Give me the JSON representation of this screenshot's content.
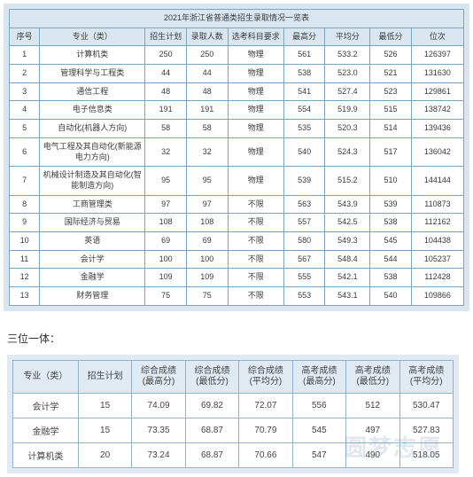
{
  "table1": {
    "title": "2021年浙江省普通类招生录取情况一览表",
    "headers": [
      "序号",
      "专业（类）",
      "招生计划",
      "录取人数",
      "选考科目要求",
      "最高分",
      "平均分",
      "最低分",
      "位次"
    ],
    "rows": [
      [
        "1",
        "计算机类",
        "250",
        "250",
        "物理",
        "561",
        "533.2",
        "526",
        "126397"
      ],
      [
        "2",
        "管理科学与工程类",
        "44",
        "44",
        "物理",
        "538",
        "523.0",
        "521",
        "131630"
      ],
      [
        "3",
        "通信工程",
        "48",
        "48",
        "物理",
        "541",
        "527.4",
        "523",
        "129861"
      ],
      [
        "4",
        "电子信息类",
        "191",
        "191",
        "物理",
        "554",
        "519.9",
        "515",
        "138742"
      ],
      [
        "5",
        "自动化(机器人方向)",
        "58",
        "58",
        "物理",
        "535",
        "520.3",
        "514",
        "139436"
      ],
      [
        "6",
        "电气工程及其自动化(新能源电力方向)",
        "32",
        "32",
        "物理",
        "540",
        "524.3",
        "517",
        "136042"
      ],
      [
        "7",
        "机械设计制造及其自动化(智能制造方向)",
        "95",
        "95",
        "物理",
        "539",
        "515.2",
        "510",
        "144144"
      ],
      [
        "8",
        "工商管理类",
        "97",
        "97",
        "不限",
        "563",
        "543.9",
        "539",
        "110873"
      ],
      [
        "9",
        "国际经济与贸易",
        "108",
        "108",
        "不限",
        "557",
        "542.5",
        "538",
        "112162"
      ],
      [
        "10",
        "英语",
        "69",
        "69",
        "不限",
        "580",
        "549.3",
        "545",
        "104438"
      ],
      [
        "11",
        "会计学",
        "100",
        "100",
        "不限",
        "567",
        "548.4",
        "544",
        "105237"
      ],
      [
        "12",
        "金融学",
        "109",
        "109",
        "不限",
        "555",
        "542.1",
        "538",
        "112428"
      ],
      [
        "13",
        "财务管理",
        "75",
        "75",
        "不限",
        "553",
        "543.1",
        "540",
        "109866"
      ]
    ],
    "col_widths": [
      "28px",
      "110px",
      "40px",
      "40px",
      "56px",
      "40px",
      "44px",
      "40px",
      "52px"
    ]
  },
  "section_label": "三位一体：",
  "table2": {
    "headers": [
      "专业（类）",
      "招生计划",
      "综合成绩\n(最高分)",
      "综合成绩\n(最低分)",
      "综合成绩\n(平均分)",
      "高考成绩\n(最高分)",
      "高考成绩\n(最低分)",
      "高考成绩\n(平均分)"
    ],
    "rows": [
      [
        "会计学",
        "15",
        "74.09",
        "69.82",
        "72.07",
        "556",
        "512",
        "530.47"
      ],
      [
        "金融学",
        "15",
        "73.35",
        "68.87",
        "70.79",
        "545",
        "497",
        "527.83"
      ],
      [
        "计算机类",
        "20",
        "73.24",
        "68.87",
        "70.66",
        "547",
        "490",
        "518.05"
      ]
    ]
  },
  "watermark": "圆梦志愿"
}
